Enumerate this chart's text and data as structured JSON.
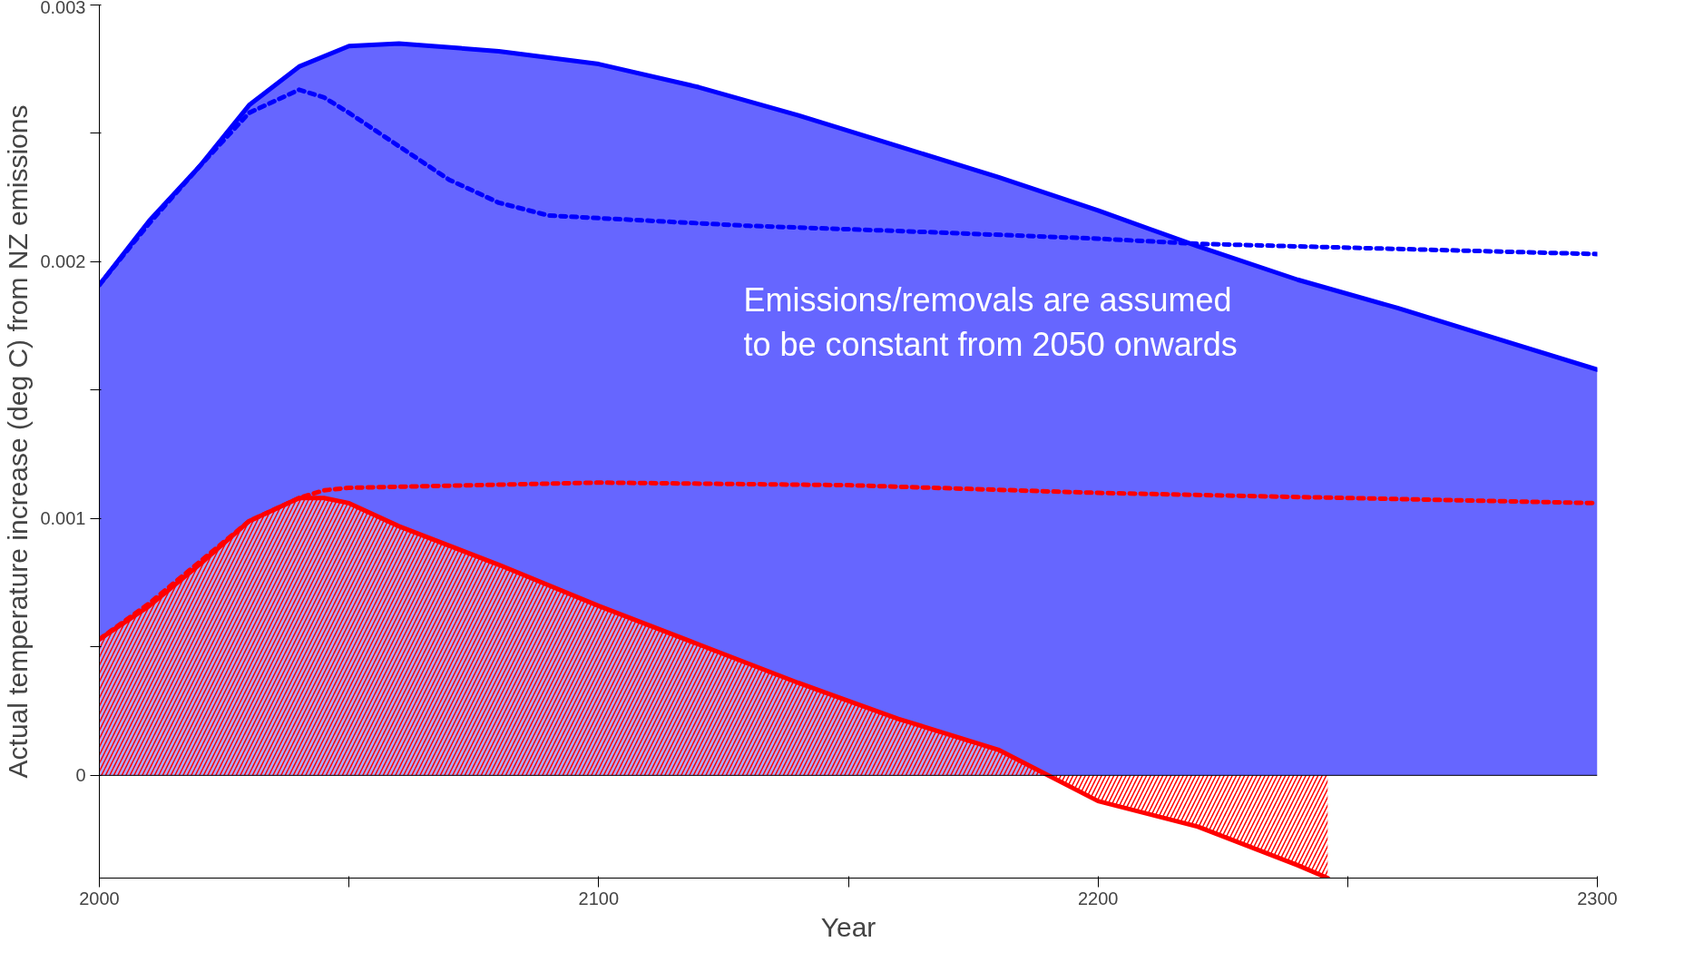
{
  "chart_data": {
    "type": "line",
    "xlabel": "Year",
    "ylabel": "Actual temperature increase (deg C) from NZ emissions",
    "xlim": [
      2000,
      2300
    ],
    "ylim": [
      -0.0004,
      0.003
    ],
    "xticks": [
      2000,
      {
        "value": 2050,
        "label": null
      },
      2100,
      {
        "value": 2150,
        "label": null
      },
      2200,
      {
        "value": 2250,
        "label": null
      },
      2300
    ],
    "yticks": [
      0,
      {
        "value": 0.0005,
        "label": null
      },
      0.001,
      {
        "value": 0.0015,
        "label": null
      },
      0.002,
      {
        "value": 0.0025,
        "label": null
      },
      0.003
    ],
    "grid": false,
    "ref_lines": [
      {
        "axis": "y",
        "value": 0,
        "color": "#000000"
      }
    ],
    "annotations": [
      "Emissions/removals are assumed\nto be constant from 2050 onwards"
    ],
    "series": [
      {
        "type": "area",
        "line_style": "solid",
        "color": "#0000ff",
        "x": [
          2000,
          2010,
          2020,
          2030,
          2040,
          2050,
          2060,
          2080,
          2100,
          2120,
          2140,
          2160,
          2180,
          2200,
          2220,
          2240,
          2260,
          2280,
          2300
        ],
        "values": [
          0.00191,
          0.00216,
          0.00237,
          0.00261,
          0.00276,
          0.00284,
          0.00285,
          0.00282,
          0.00277,
          0.00268,
          0.00257,
          0.00245,
          0.00233,
          0.0022,
          0.00206,
          0.00193,
          0.00182,
          0.0017,
          0.00158
        ]
      },
      {
        "type": "area",
        "line_style": "solid",
        "color": "#ff0000",
        "x": [
          2000,
          2010,
          2020,
          2030,
          2040,
          2045,
          2050,
          2060,
          2080,
          2100,
          2120,
          2140,
          2160,
          2180,
          2190,
          2200,
          2220,
          2240,
          2246
        ],
        "values": [
          0.00053,
          0.00066,
          0.00082,
          0.00099,
          0.00108,
          0.00108,
          0.00106,
          0.00097,
          0.00082,
          0.00066,
          0.00051,
          0.00036,
          0.00022,
          0.0001,
          0.0,
          -0.0001,
          -0.0002,
          -0.00035,
          -0.0004
        ]
      },
      {
        "type": "line",
        "line_style": "dashed",
        "color": "#0000ff",
        "x": [
          2000,
          2010,
          2020,
          2030,
          2040,
          2045,
          2050,
          2060,
          2070,
          2080,
          2090,
          2100,
          2130,
          2160,
          2200,
          2220,
          2260,
          2300
        ],
        "values": [
          0.00191,
          0.00215,
          0.00237,
          0.00258,
          0.00267,
          0.00264,
          0.00258,
          0.00245,
          0.00232,
          0.00223,
          0.00218,
          0.00217,
          0.00214,
          0.00212,
          0.00209,
          0.00207,
          0.00205,
          0.00203
        ]
      },
      {
        "type": "line",
        "line_style": "dashed",
        "color": "#ff0000",
        "x": [
          2000,
          2010,
          2020,
          2030,
          2040,
          2045,
          2050,
          2100,
          2150,
          2200,
          2250,
          2300
        ],
        "values": [
          0.00053,
          0.00067,
          0.00083,
          0.00099,
          0.00108,
          0.00111,
          0.00112,
          0.00114,
          0.00113,
          0.0011,
          0.00108,
          0.00106
        ]
      }
    ]
  }
}
